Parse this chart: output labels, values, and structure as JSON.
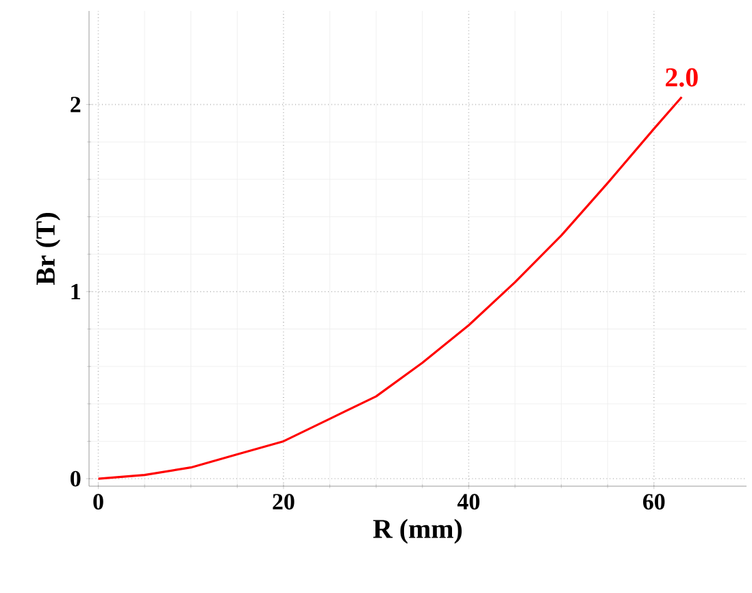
{
  "chart_data": {
    "type": "line",
    "xlabel": "R (mm)",
    "ylabel": "Br (T)",
    "x": [
      0,
      5,
      10,
      15,
      20,
      25,
      30,
      35,
      40,
      45,
      50,
      55,
      60,
      63
    ],
    "series": [
      {
        "color": "#ff0000",
        "values": [
          0,
          0.02,
          0.06,
          0.13,
          0.2,
          0.32,
          0.44,
          0.62,
          0.82,
          1.05,
          1.3,
          1.58,
          1.87,
          2.04
        ]
      }
    ],
    "xlim": [
      -1,
      70
    ],
    "ylim": [
      -0.04,
      2.5
    ],
    "xticks": [
      0,
      20,
      40,
      60
    ],
    "yticks": [
      0,
      1,
      2
    ],
    "grid": true,
    "annotations": [
      {
        "text": "2.0",
        "x": 63,
        "y": 2.04
      }
    ]
  }
}
